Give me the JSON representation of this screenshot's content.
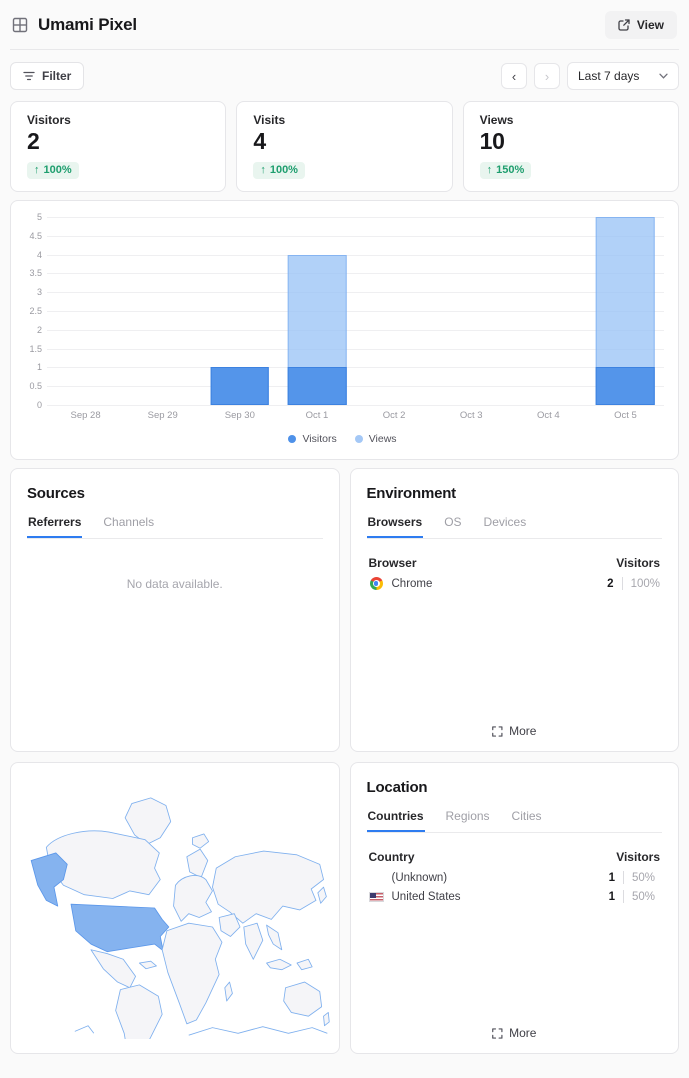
{
  "header": {
    "title": "Umami Pixel",
    "view_label": "View"
  },
  "toolbar": {
    "filter_label": "Filter",
    "prev_glyph": "‹",
    "next_glyph": "›",
    "date_range": "Last 7 days"
  },
  "stats": [
    {
      "label": "Visitors",
      "value": "2",
      "arrow": "↑",
      "change": "100%"
    },
    {
      "label": "Visits",
      "value": "4",
      "arrow": "↑",
      "change": "100%"
    },
    {
      "label": "Views",
      "value": "10",
      "arrow": "↑",
      "change": "150%"
    }
  ],
  "chart_data": {
    "type": "bar",
    "stacked": true,
    "categories": [
      "Sep 28",
      "Sep 29",
      "Sep 30",
      "Oct 1",
      "Oct 2",
      "Oct 3",
      "Oct 4",
      "Oct 5"
    ],
    "series": [
      {
        "name": "Visitors",
        "color": "#4e91e9",
        "values": [
          0,
          0,
          1,
          1,
          0,
          0,
          0,
          1
        ]
      },
      {
        "name": "Views",
        "color": "#a4c8f6",
        "values": [
          0,
          0,
          1,
          4,
          0,
          0,
          0,
          5
        ]
      }
    ],
    "title": "",
    "xlabel": "",
    "ylabel": "",
    "ylim": [
      0,
      5
    ],
    "ytick_step": 0.5,
    "grid": "horizontal",
    "legend_position": "bottom"
  },
  "sources": {
    "title": "Sources",
    "tabs": [
      "Referrers",
      "Channels"
    ],
    "active_tab": "Referrers",
    "empty_message": "No data available."
  },
  "environment": {
    "title": "Environment",
    "tabs": [
      "Browsers",
      "OS",
      "Devices"
    ],
    "active_tab": "Browsers",
    "table": {
      "name_header": "Browser",
      "value_header": "Visitors",
      "rows": [
        {
          "label": "Chrome",
          "icon": "chrome-icon",
          "value": "2",
          "percent": "100%"
        }
      ]
    },
    "more_label": "More"
  },
  "map": {
    "highlighted_country": "United States",
    "highlight_color": "#85b3ef",
    "land_color": "#f5f5f8",
    "border_color": "#7fb0ee"
  },
  "location": {
    "title": "Location",
    "tabs": [
      "Countries",
      "Regions",
      "Cities"
    ],
    "active_tab": "Countries",
    "table": {
      "name_header": "Country",
      "value_header": "Visitors",
      "rows": [
        {
          "label": "(Unknown)",
          "icon": "none",
          "value": "1",
          "percent": "50%"
        },
        {
          "label": "United States",
          "icon": "us-flag-icon",
          "value": "1",
          "percent": "50%"
        }
      ]
    },
    "more_label": "More"
  },
  "colors": {
    "accent_blue": "#2e7cf0",
    "bar_visitors": "#4e91e9",
    "bar_views": "#a4c8f6",
    "positive_green": "#1e9e6e",
    "positive_bg": "#e9f5ef"
  }
}
